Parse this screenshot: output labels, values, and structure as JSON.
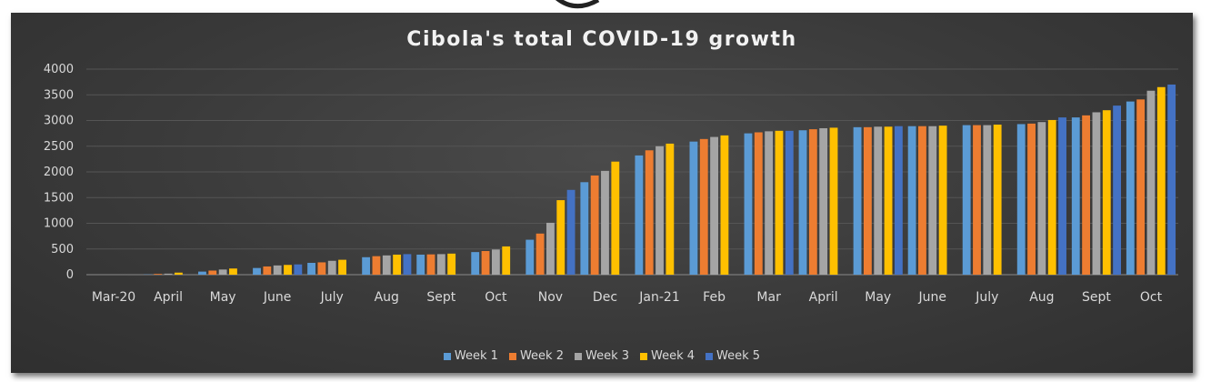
{
  "chart_data": {
    "type": "bar",
    "title": "Cibola's total COVID-19 growth",
    "xlabel": "",
    "ylabel": "",
    "ylim": [
      0,
      4000
    ],
    "yticks": [
      0,
      500,
      1000,
      1500,
      2000,
      2500,
      3000,
      3500,
      4000
    ],
    "grid": true,
    "legend_position": "bottom",
    "categories": [
      "Mar-20",
      "April",
      "May",
      "June",
      "July",
      "Aug",
      "Sept",
      "Oct",
      "Nov",
      "Dec",
      "Jan-21",
      "Feb",
      "Mar",
      "April",
      "May",
      "June",
      "July",
      "Aug",
      "Sept",
      "Oct"
    ],
    "series": [
      {
        "name": "Week 1",
        "color": "#5b9bd5",
        "values": [
          0,
          5,
          60,
          130,
          230,
          340,
          390,
          440,
          680,
          1800,
          2320,
          2590,
          2750,
          2810,
          2870,
          2890,
          2910,
          2930,
          3060,
          3370
        ]
      },
      {
        "name": "Week 2",
        "color": "#ed7d31",
        "values": [
          0,
          15,
          80,
          160,
          240,
          360,
          395,
          460,
          800,
          1930,
          2420,
          2640,
          2770,
          2830,
          2870,
          2890,
          2910,
          2940,
          3100,
          3410
        ]
      },
      {
        "name": "Week 3",
        "color": "#a5a5a5",
        "values": [
          0,
          20,
          100,
          180,
          270,
          375,
          400,
          490,
          1010,
          2020,
          2500,
          2680,
          2790,
          2850,
          2880,
          2890,
          2910,
          2970,
          3160,
          3580
        ]
      },
      {
        "name": "Week 4",
        "color": "#ffc000",
        "values": [
          0,
          40,
          120,
          190,
          290,
          390,
          410,
          550,
          1450,
          2200,
          2550,
          2710,
          2800,
          2860,
          2880,
          2900,
          2920,
          3010,
          3200,
          3650
        ]
      },
      {
        "name": "Week 5",
        "color": "#4472c4",
        "values": [
          0,
          null,
          null,
          200,
          null,
          400,
          null,
          null,
          1650,
          null,
          null,
          null,
          2800,
          null,
          2890,
          null,
          null,
          3060,
          3290,
          3700
        ]
      }
    ]
  }
}
